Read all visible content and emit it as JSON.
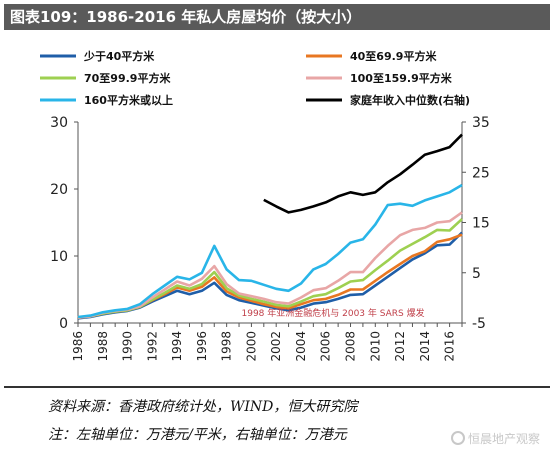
{
  "header": {
    "title": "图表109：1986-2016 年私人房屋均价（按大小）"
  },
  "chart_data": {
    "type": "line",
    "x": [
      1986,
      1987,
      1988,
      1989,
      1990,
      1991,
      1992,
      1993,
      1994,
      1995,
      1996,
      1997,
      1998,
      1999,
      2000,
      2001,
      2002,
      2003,
      2004,
      2005,
      2006,
      2007,
      2008,
      2009,
      2010,
      2011,
      2012,
      2013,
      2014,
      2015,
      2016,
      2017
    ],
    "xticks": [
      "1986",
      "1988",
      "1990",
      "1992",
      "1994",
      "1996",
      "1998",
      "2000",
      "2002",
      "2004",
      "2006",
      "2008",
      "2010",
      "2012",
      "2014",
      "2016"
    ],
    "ylim_left": [
      0,
      30
    ],
    "yticks_left": [
      "0",
      "10",
      "20",
      "30"
    ],
    "ylim_right": [
      -5,
      35
    ],
    "yticks_right": [
      "-5",
      "5",
      "15",
      "25",
      "35"
    ],
    "series": [
      {
        "name": "少于40平方米",
        "axis": "left",
        "color": "#1f5ea8",
        "values": [
          0.7,
          0.9,
          1.3,
          1.6,
          1.8,
          2.3,
          3.2,
          4.0,
          4.8,
          4.3,
          4.8,
          6.0,
          4.2,
          3.4,
          3.0,
          2.6,
          2.2,
          1.9,
          2.3,
          2.9,
          3.1,
          3.6,
          4.2,
          4.3,
          5.6,
          6.9,
          8.2,
          9.5,
          10.4,
          11.6,
          11.7,
          13.5
        ]
      },
      {
        "name": "40至69.9平方米",
        "axis": "left",
        "color": "#e87722",
        "values": [
          0.8,
          1.0,
          1.4,
          1.7,
          1.9,
          2.4,
          3.4,
          4.3,
          5.3,
          4.8,
          5.4,
          6.8,
          4.7,
          3.8,
          3.3,
          2.8,
          2.4,
          2.2,
          2.8,
          3.4,
          3.6,
          4.2,
          5.0,
          5.0,
          6.3,
          7.6,
          8.8,
          10.0,
          10.7,
          12.1,
          12.5,
          13.2
        ]
      },
      {
        "name": "70至99.9平方米",
        "axis": "left",
        "color": "#9ed051",
        "values": [
          0.8,
          1.0,
          1.4,
          1.7,
          1.9,
          2.4,
          3.5,
          4.5,
          5.6,
          5.1,
          5.8,
          7.6,
          5.2,
          4.1,
          3.6,
          3.2,
          2.7,
          2.5,
          3.2,
          4.0,
          4.3,
          5.2,
          6.2,
          6.4,
          7.9,
          9.3,
          10.8,
          11.8,
          12.8,
          13.9,
          13.8,
          15.5
        ]
      },
      {
        "name": "100至159.9平方米",
        "axis": "left",
        "color": "#e8a6a6",
        "values": [
          0.8,
          1.0,
          1.5,
          1.8,
          2.0,
          2.5,
          3.8,
          5.0,
          6.2,
          5.6,
          6.6,
          8.5,
          5.8,
          4.4,
          4.0,
          3.6,
          3.1,
          2.9,
          3.8,
          4.9,
          5.2,
          6.3,
          7.6,
          7.6,
          9.7,
          11.5,
          13.1,
          13.9,
          14.2,
          15.0,
          15.2,
          16.5
        ]
      },
      {
        "name": "160平方米或以上",
        "axis": "left",
        "color": "#29b5e8",
        "values": [
          0.9,
          1.1,
          1.6,
          1.9,
          2.1,
          2.8,
          4.3,
          5.6,
          6.9,
          6.5,
          7.5,
          11.5,
          8.0,
          6.4,
          6.3,
          5.7,
          5.1,
          4.8,
          5.9,
          8.0,
          8.8,
          10.3,
          12.0,
          12.5,
          14.7,
          17.6,
          17.8,
          17.5,
          18.3,
          18.9,
          19.5,
          20.6
        ]
      },
      {
        "name": "家庭年收入中位数(右轴)",
        "axis": "right",
        "color": "#000000",
        "x": [
          2001,
          2002,
          2003,
          2004,
          2005,
          2006,
          2007,
          2008,
          2009,
          2010,
          2011,
          2012,
          2013,
          2014,
          2015,
          2016,
          2017
        ],
        "values": [
          19.5,
          18.2,
          17.0,
          17.5,
          18.2,
          19.0,
          20.2,
          21.0,
          20.5,
          21.0,
          23.0,
          24.6,
          26.5,
          28.5,
          29.2,
          30.0,
          32.5
        ]
      }
    ],
    "annotations": [
      "1998 年亚洲金融危机与 2003 年 SARS 爆发"
    ],
    "grid": false,
    "legend": "top"
  },
  "footer": {
    "source": "资料来源：香港政府统计处，WIND，恒大研究院",
    "note": "注：左轴单位：万港元/平米，右轴单位：万港元"
  },
  "watermark": {
    "text": "恒晨地产观察"
  }
}
